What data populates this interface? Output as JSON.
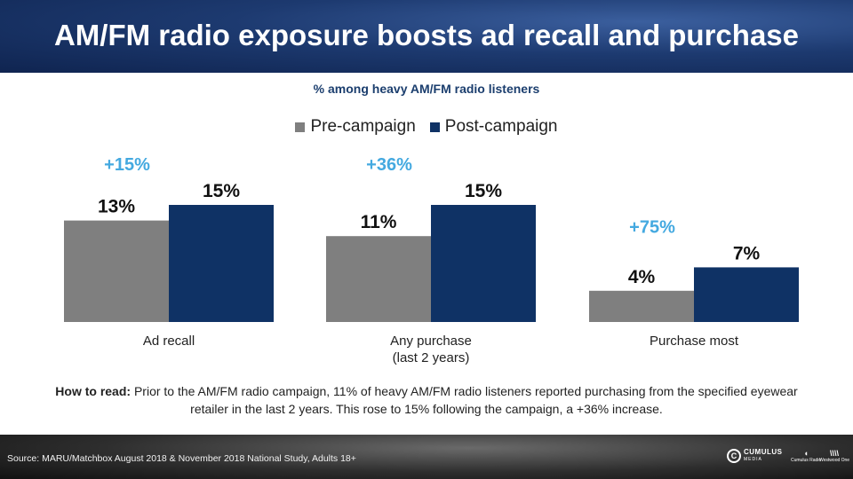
{
  "header": {
    "title": "AM/FM radio exposure boosts ad recall and purchase"
  },
  "chart_data": {
    "type": "bar",
    "title": "AM/FM radio exposure boosts ad recall and purchase",
    "subtitle": "% among heavy AM/FM radio listeners",
    "categories": [
      [
        "Ad recall"
      ],
      [
        "Any purchase",
        "(last 2 years)"
      ],
      [
        "Purchase most"
      ]
    ],
    "series": [
      {
        "name": "Pre-campaign",
        "values": [
          13,
          11,
          4
        ],
        "labels": [
          "13%",
          "11%",
          "4%"
        ],
        "color": "#7f7f7f"
      },
      {
        "name": "Post-campaign",
        "values": [
          15,
          15,
          7
        ],
        "labels": [
          "15%",
          "15%",
          "7%"
        ],
        "color": "#0f3265"
      }
    ],
    "change_labels": [
      "+15%",
      "+36%",
      "+75%"
    ],
    "change_color": "#44a9e0",
    "ylim": [
      0,
      15
    ],
    "grid": false,
    "legend": "top-center"
  },
  "note": {
    "lead": "How to read:",
    "text": "Prior to the AM/FM radio campaign, 11% of heavy AM/FM radio listeners reported purchasing from the specified eyewear retailer in the last 2 years. This rose to 15% following the campaign, a +36% increase."
  },
  "footer": {
    "source": "Source: MARU/Matchbox August 2018 & November 2018 National Study, Adults 18+",
    "logo_cumulus": "CUMULUS",
    "logo_cumulus_sub": "MEDIA",
    "logo_radio": "Cumulus Radio",
    "logo_ww": "Westwood One"
  }
}
